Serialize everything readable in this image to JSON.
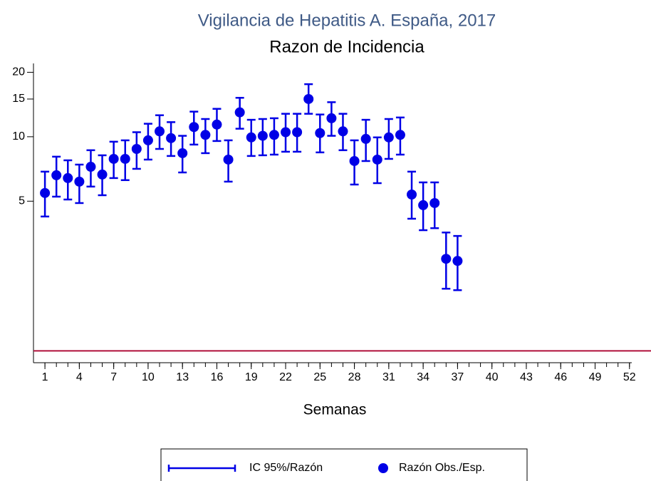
{
  "chart_data": {
    "type": "scatter",
    "title": "Vigilancia de Hepatitis A. España, 2017",
    "subtitle": "Razon de Incidencia",
    "x_label": "Semanas",
    "y_scale": "log",
    "xlim": [
      0,
      52.2
    ],
    "ylim": [
      0.88,
      22
    ],
    "xticks": [
      1,
      4,
      7,
      10,
      13,
      16,
      19,
      22,
      25,
      28,
      31,
      34,
      37,
      40,
      43,
      46,
      49,
      52
    ],
    "yticks": [
      5,
      10,
      15,
      20
    ],
    "reference_line": {
      "value": 1,
      "color": "#b0103a"
    },
    "x": [
      1,
      2,
      3,
      4,
      5,
      6,
      7,
      8,
      9,
      10,
      11,
      12,
      13,
      14,
      15,
      16,
      17,
      18,
      19,
      20,
      21,
      22,
      23,
      24,
      25,
      26,
      27,
      28,
      29,
      30,
      31,
      32,
      33,
      34,
      35,
      36,
      37
    ],
    "error_bars": {
      "name": "IC 95%/Razón",
      "color": "#0000e6",
      "lower": [
        4.24,
        5.25,
        5.09,
        4.9,
        5.85,
        5.33,
        6.41,
        6.27,
        7.08,
        7.82,
        8.77,
        8.13,
        6.81,
        9.19,
        8.38,
        9.55,
        6.17,
        10.9,
        8.13,
        8.19,
        8.25,
        8.51,
        8.51,
        12.8,
        8.45,
        10.1,
        8.65,
        5.98,
        7.7,
        6.07,
        7.88,
        8.25,
        4.14,
        3.66,
        3.74,
        1.95,
        1.92
      ],
      "upper": [
        6.87,
        8.07,
        7.76,
        7.41,
        8.65,
        8.19,
        9.48,
        9.62,
        10.5,
        11.5,
        12.6,
        11.7,
        10.1,
        13.1,
        12.1,
        13.5,
        9.62,
        15.2,
        12.0,
        12.1,
        12.2,
        12.8,
        12.8,
        17.6,
        12.7,
        14.5,
        12.8,
        9.62,
        12.0,
        9.93,
        12.1,
        12.3,
        6.87,
        6.12,
        6.12,
        3.57,
        3.44
      ]
    },
    "series": [
      {
        "name": "Razón Obs./Esp.",
        "color": "#0000e6",
        "values": [
          5.46,
          6.61,
          6.41,
          6.17,
          7.24,
          6.66,
          7.88,
          7.88,
          8.77,
          9.62,
          10.6,
          9.85,
          8.38,
          11.1,
          10.2,
          11.4,
          7.82,
          13.0,
          9.93,
          10.1,
          10.2,
          10.5,
          10.5,
          15.0,
          10.4,
          12.2,
          10.6,
          7.7,
          9.77,
          7.82,
          9.93,
          10.2,
          5.37,
          4.79,
          4.9,
          2.69,
          2.63
        ]
      }
    ]
  }
}
